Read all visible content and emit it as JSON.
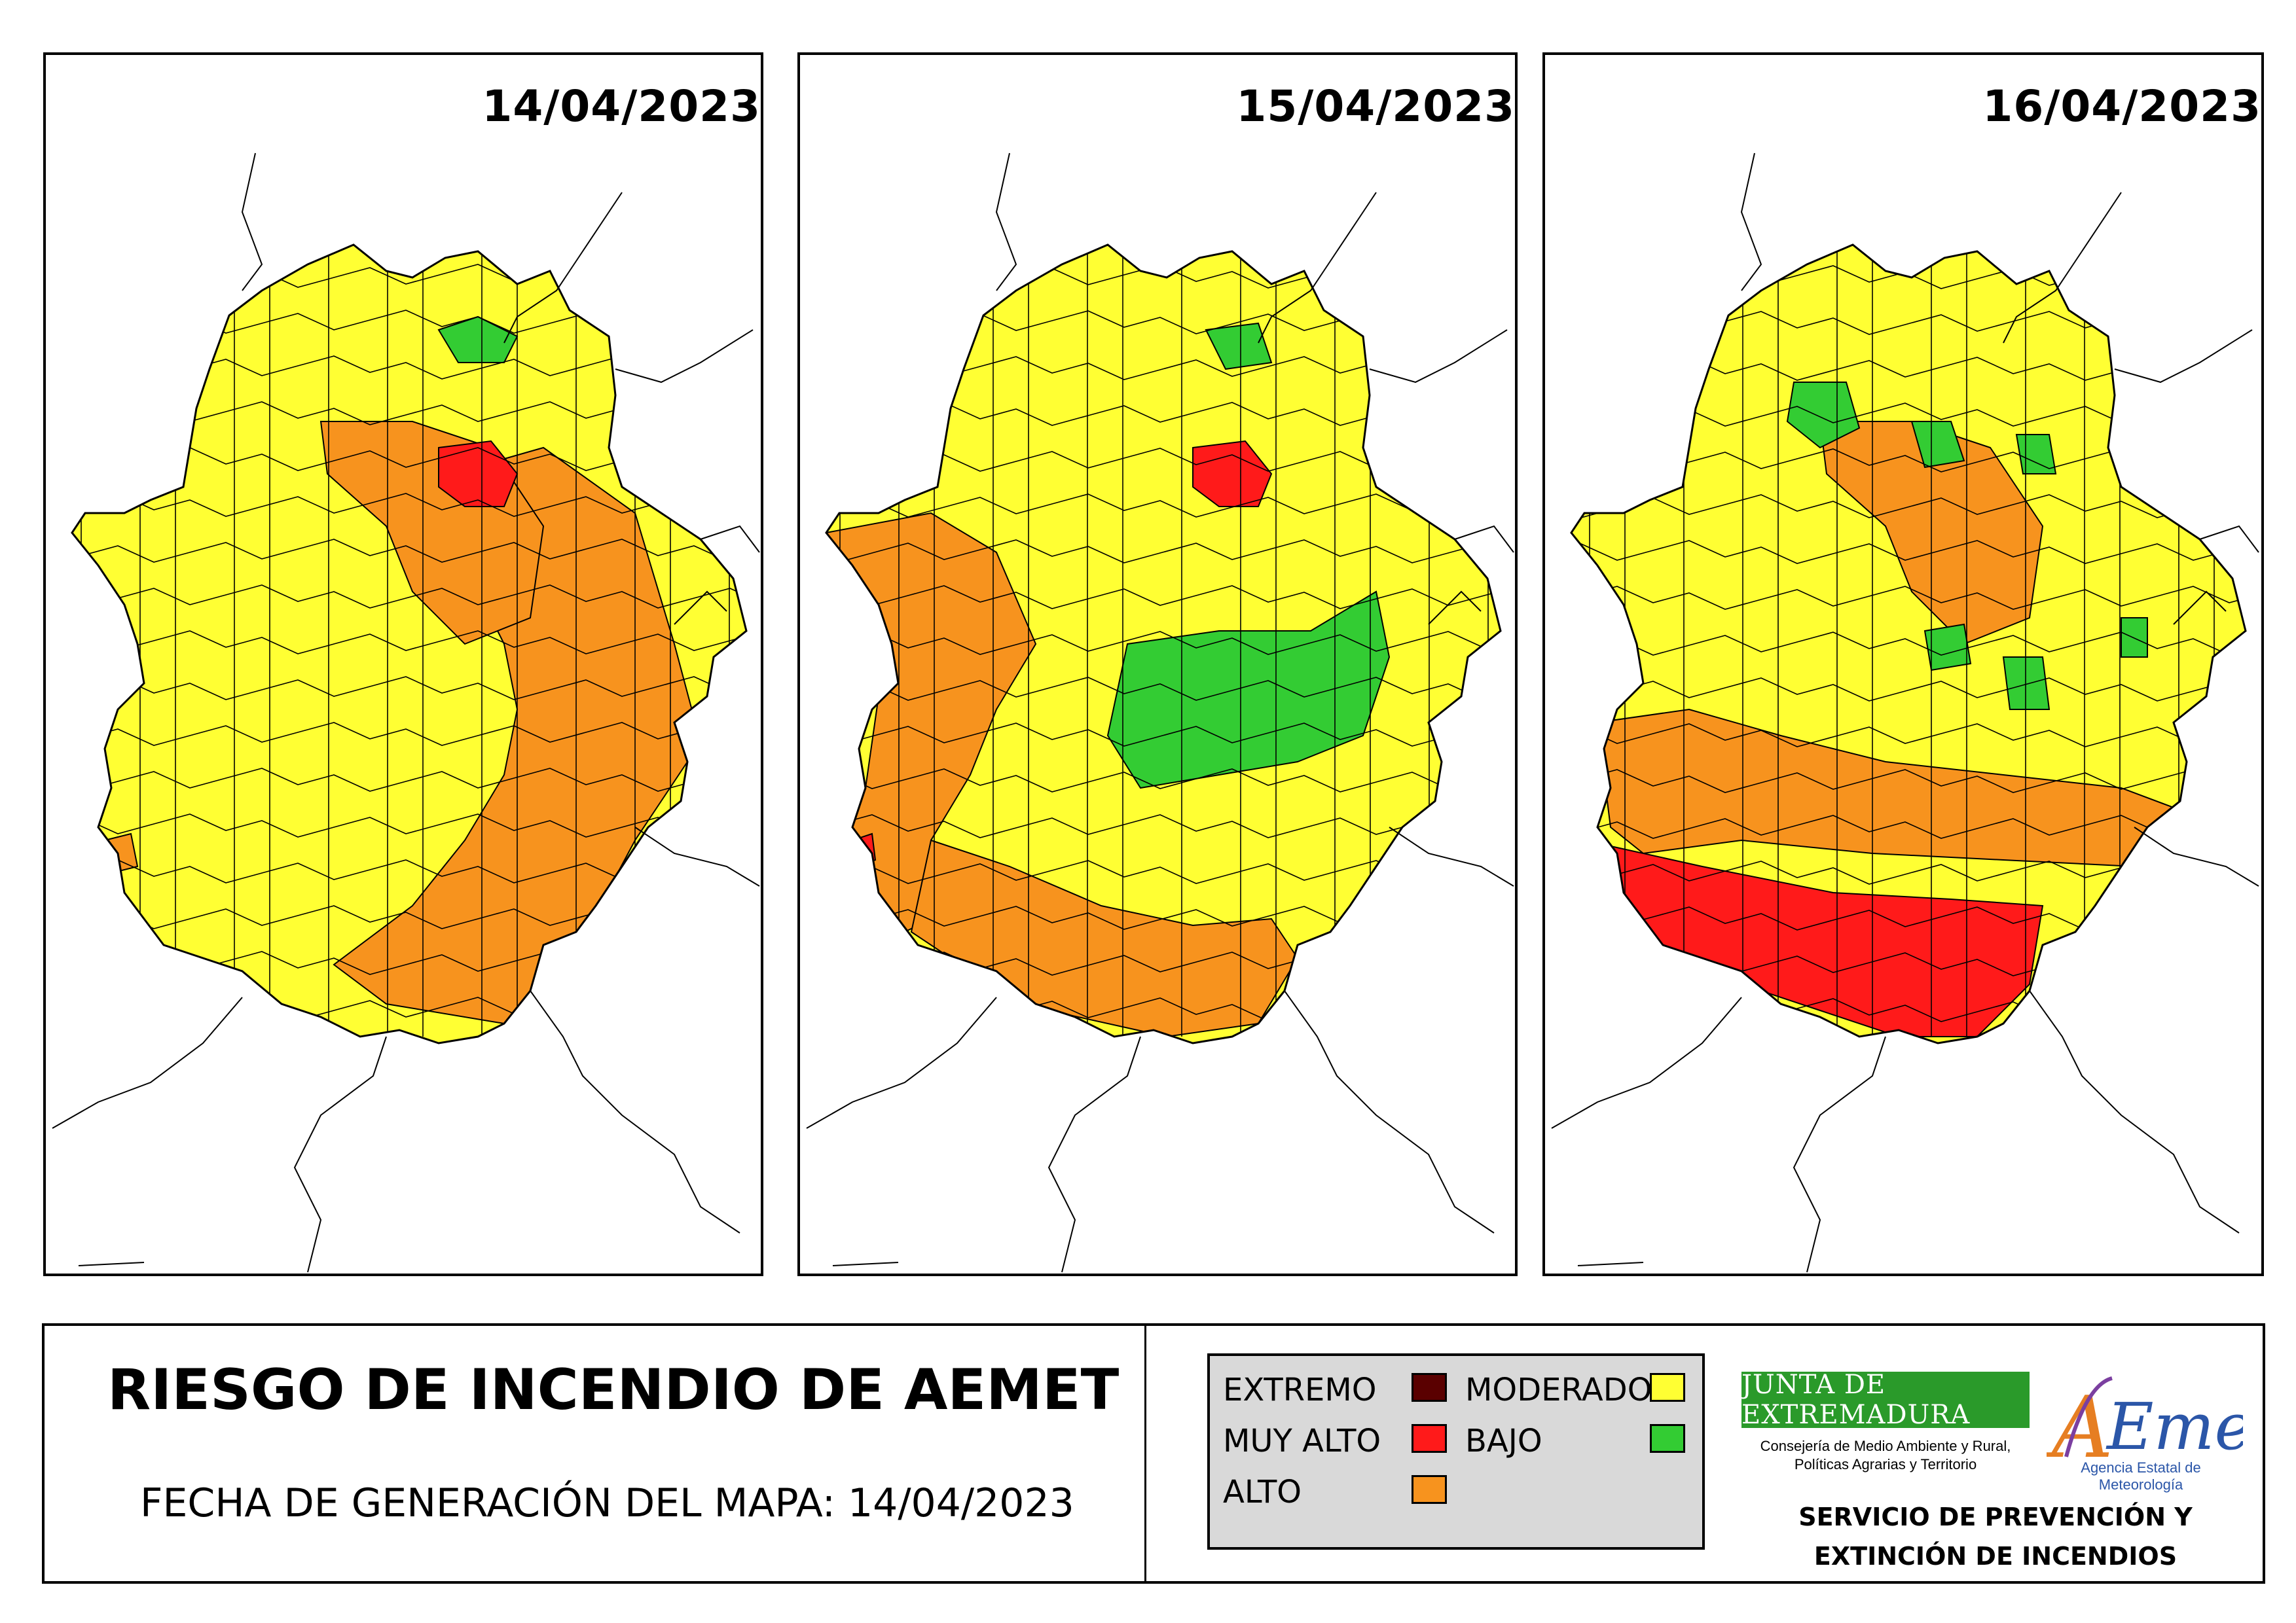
{
  "maps": [
    {
      "date": "14/04/2023",
      "regions": [
        {
          "level": "ALTO",
          "zone": "south-east arc"
        },
        {
          "level": "ALTO",
          "zone": "centre-north band"
        },
        {
          "level": "MUY ALTO",
          "zone": "north-centre spot"
        },
        {
          "level": "BAJO",
          "zone": "north-east corner"
        },
        {
          "level": "ALTO",
          "zone": "south-west spot"
        }
      ]
    },
    {
      "date": "15/04/2023",
      "regions": [
        {
          "level": "ALTO",
          "zone": "west and south-west"
        },
        {
          "level": "ALTO",
          "zone": "south band"
        },
        {
          "level": "BAJO",
          "zone": "centre-east block"
        },
        {
          "level": "BAJO",
          "zone": "north-east spot"
        },
        {
          "level": "MUY ALTO",
          "zone": "north-centre spot"
        },
        {
          "level": "MUY ALTO",
          "zone": "far south-west spot"
        }
      ]
    },
    {
      "date": "16/04/2023",
      "regions": [
        {
          "level": "ALTO",
          "zone": "south-west band"
        },
        {
          "level": "MUY ALTO",
          "zone": "south"
        },
        {
          "level": "ALTO",
          "zone": "centre-north band"
        },
        {
          "level": "BAJO",
          "zone": "north spots"
        },
        {
          "level": "BAJO",
          "zone": "centre-east spots"
        }
      ]
    }
  ],
  "footer": {
    "title": "RIESGO DE INCENDIO DE AEMET",
    "generation_date": "FECHA DE GENERACIÓN DEL MAPA: 14/04/2023"
  },
  "legend": {
    "items": [
      {
        "label": "EXTREMO",
        "color": "#5a0000"
      },
      {
        "label": "MUY ALTO",
        "color": "#ff1a1a"
      },
      {
        "label": "ALTO",
        "color": "#f7931e"
      },
      {
        "label": "MODERADO",
        "color": "#ffff33"
      },
      {
        "label": "BAJO",
        "color": "#33cc33"
      }
    ]
  },
  "colors": {
    "EXTREMO": "#5a0000",
    "MUY ALTO": "#ff1a1a",
    "ALTO": "#f7931e",
    "MODERADO": "#ffff33",
    "BAJO": "#33cc33"
  },
  "logos": {
    "junta": "JUNTA DE EXTREMADURA",
    "junta_sub": "Consejería de Medio Ambiente y Rural, Políticas Agrarias y Territorio",
    "aemet": "AEMet",
    "aemet_sub": "Agencia Estatal de Meteorología"
  },
  "service": {
    "line1": "SERVICIO DE PREVENCIÓN Y",
    "line2": "EXTINCIÓN DE INCENDIOS"
  }
}
